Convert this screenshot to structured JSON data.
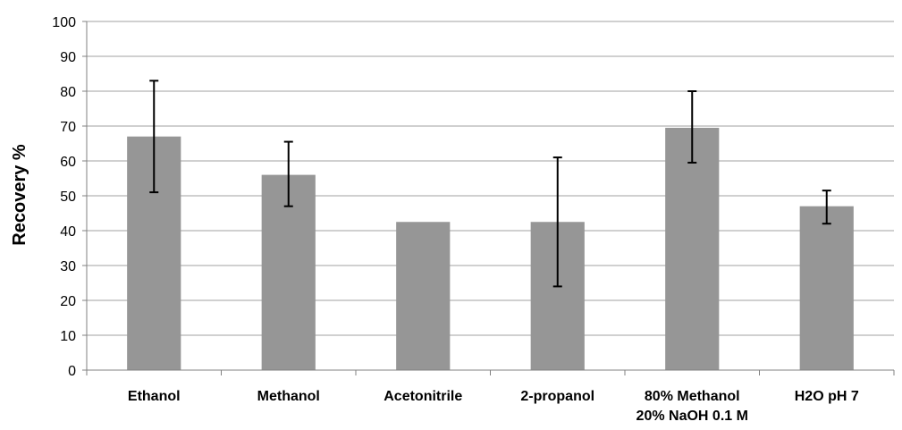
{
  "chart_data": {
    "type": "bar",
    "title": "",
    "xlabel": "",
    "ylabel": "Recovery %",
    "ylim": [
      0,
      100
    ],
    "yticks": [
      0,
      10,
      20,
      30,
      40,
      50,
      60,
      70,
      80,
      90,
      100
    ],
    "grid": true,
    "legend": "none",
    "categories": [
      [
        "Ethanol"
      ],
      [
        "Methanol"
      ],
      [
        "Acetonitrile"
      ],
      [
        "2-propanol"
      ],
      [
        "80% Methanol",
        "20% NaOH 0.1 M"
      ],
      [
        "H2O pH 7"
      ]
    ],
    "series": [
      {
        "values": [
          67,
          56,
          42.5,
          42.5,
          69.5,
          47
        ],
        "error_low": [
          51,
          47,
          null,
          24,
          59.5,
          42
        ],
        "error_high": [
          83,
          65.5,
          null,
          61,
          80,
          51.5
        ],
        "color": "#969696"
      }
    ],
    "colors": {
      "gridline": "#a0a0a0",
      "axis": "#808080",
      "errorbar": "#000000"
    }
  }
}
